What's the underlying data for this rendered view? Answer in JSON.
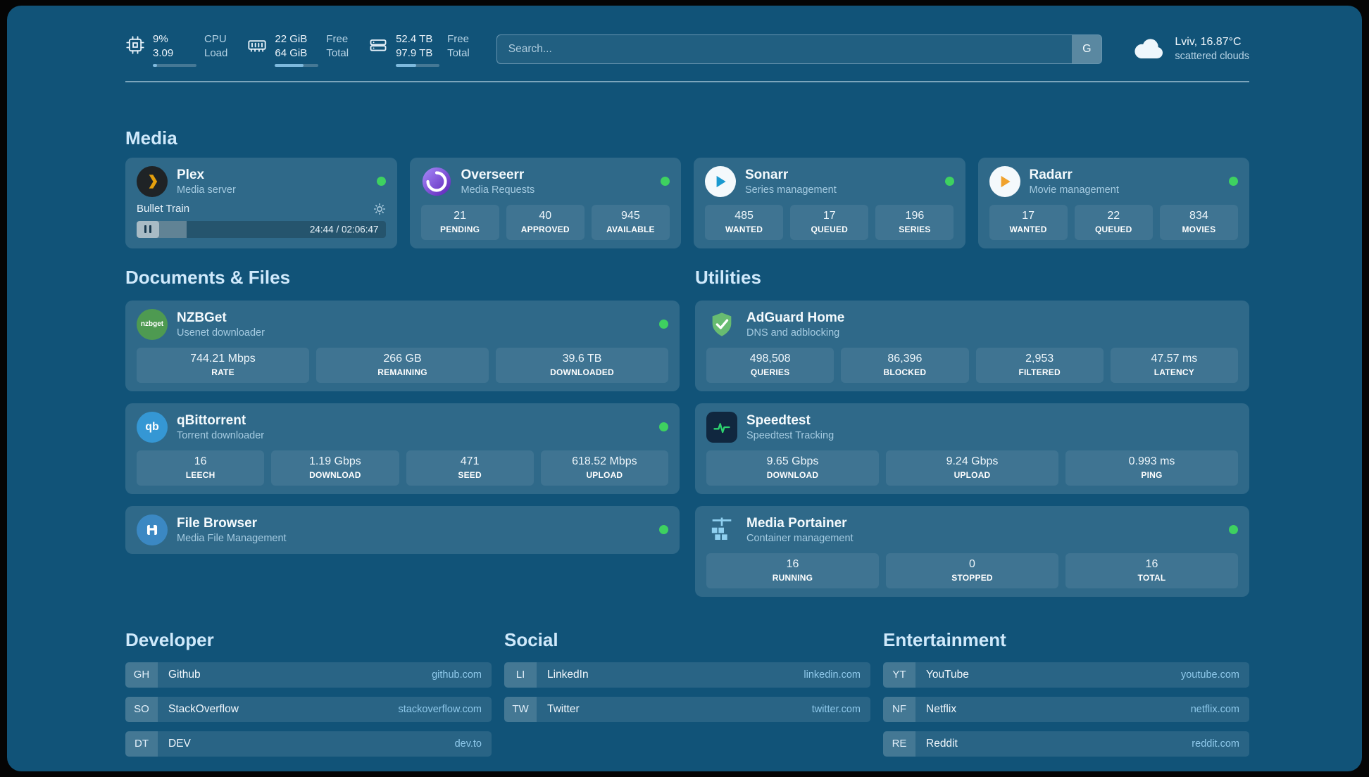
{
  "colors": {
    "page_bg": "#115378",
    "card_bg": "rgba(255,255,255,0.13)",
    "tile_bg": "rgba(255,255,255,0.08)",
    "track": "rgba(255,255,255,0.22)",
    "progress_fill": "#7db9dd",
    "status_green": "#3ed160",
    "heading": "#cfe9fb",
    "subtitle": "#a5cbe1",
    "url": "#8ec8ea"
  },
  "topbar": {
    "cpu": {
      "value1": "9%",
      "value2": "3.09",
      "label1": "CPU",
      "label2": "Load",
      "progress": 9
    },
    "ram": {
      "value1": "22 GiB",
      "value2": "64 GiB",
      "label1": "Free",
      "label2": "Total",
      "progress": 66
    },
    "disk": {
      "value1": "52.4 TB",
      "value2": "97.9 TB",
      "label1": "Free",
      "label2": "Total",
      "progress": 47
    },
    "search": {
      "placeholder": "Search...",
      "engine_button": "G"
    },
    "weather": {
      "location": "Lviv, 16.87°C",
      "condition": "scattered clouds"
    }
  },
  "sections": {
    "media": {
      "title": "Media",
      "plex": {
        "name": "Plex",
        "subtitle": "Media server",
        "now_playing": "Bullet Train",
        "time": "24:44 / 02:06:47",
        "progress": 20
      },
      "overseerr": {
        "name": "Overseerr",
        "subtitle": "Media Requests",
        "stats": [
          {
            "value": "21",
            "label": "PENDING"
          },
          {
            "value": "40",
            "label": "APPROVED"
          },
          {
            "value": "945",
            "label": "AVAILABLE"
          }
        ]
      },
      "sonarr": {
        "name": "Sonarr",
        "subtitle": "Series management",
        "stats": [
          {
            "value": "485",
            "label": "WANTED"
          },
          {
            "value": "17",
            "label": "QUEUED"
          },
          {
            "value": "196",
            "label": "SERIES"
          }
        ]
      },
      "radarr": {
        "name": "Radarr",
        "subtitle": "Movie management",
        "stats": [
          {
            "value": "17",
            "label": "WANTED"
          },
          {
            "value": "22",
            "label": "QUEUED"
          },
          {
            "value": "834",
            "label": "MOVIES"
          }
        ]
      }
    },
    "documents": {
      "title": "Documents & Files",
      "nzbget": {
        "name": "NZBGet",
        "subtitle": "Usenet downloader",
        "icon_text": "nzbget",
        "stats": [
          {
            "value": "744.21 Mbps",
            "label": "RATE"
          },
          {
            "value": "266 GB",
            "label": "REMAINING"
          },
          {
            "value": "39.6 TB",
            "label": "DOWNLOADED"
          }
        ]
      },
      "qbittorrent": {
        "name": "qBittorrent",
        "subtitle": "Torrent downloader",
        "icon_text": "qb",
        "stats": [
          {
            "value": "16",
            "label": "LEECH"
          },
          {
            "value": "1.19 Gbps",
            "label": "DOWNLOAD"
          },
          {
            "value": "471",
            "label": "SEED"
          },
          {
            "value": "618.52 Mbps",
            "label": "UPLOAD"
          }
        ]
      },
      "filebrowser": {
        "name": "File Browser",
        "subtitle": "Media File Management"
      }
    },
    "utilities": {
      "title": "Utilities",
      "adguard": {
        "name": "AdGuard Home",
        "subtitle": "DNS and adblocking",
        "stats": [
          {
            "value": "498,508",
            "label": "QUERIES"
          },
          {
            "value": "86,396",
            "label": "BLOCKED"
          },
          {
            "value": "2,953",
            "label": "FILTERED"
          },
          {
            "value": "47.57 ms",
            "label": "LATENCY"
          }
        ]
      },
      "speedtest": {
        "name": "Speedtest",
        "subtitle": "Speedtest Tracking",
        "stats": [
          {
            "value": "9.65 Gbps",
            "label": "DOWNLOAD"
          },
          {
            "value": "9.24 Gbps",
            "label": "UPLOAD"
          },
          {
            "value": "0.993 ms",
            "label": "PING"
          }
        ]
      },
      "portainer": {
        "name": "Media Portainer",
        "subtitle": "Container management",
        "stats": [
          {
            "value": "16",
            "label": "RUNNING"
          },
          {
            "value": "0",
            "label": "STOPPED"
          },
          {
            "value": "16",
            "label": "TOTAL"
          }
        ]
      }
    },
    "bookmarks": {
      "developer": {
        "title": "Developer",
        "items": [
          {
            "abbr": "GH",
            "label": "Github",
            "url": "github.com"
          },
          {
            "abbr": "SO",
            "label": "StackOverflow",
            "url": "stackoverflow.com"
          },
          {
            "abbr": "DT",
            "label": "DEV",
            "url": "dev.to"
          }
        ]
      },
      "social": {
        "title": "Social",
        "items": [
          {
            "abbr": "LI",
            "label": "LinkedIn",
            "url": "linkedin.com"
          },
          {
            "abbr": "TW",
            "label": "Twitter",
            "url": "twitter.com"
          }
        ]
      },
      "entertainment": {
        "title": "Entertainment",
        "items": [
          {
            "abbr": "YT",
            "label": "YouTube",
            "url": "youtube.com"
          },
          {
            "abbr": "NF",
            "label": "Netflix",
            "url": "netflix.com"
          },
          {
            "abbr": "RE",
            "label": "Reddit",
            "url": "reddit.com"
          }
        ]
      }
    }
  }
}
